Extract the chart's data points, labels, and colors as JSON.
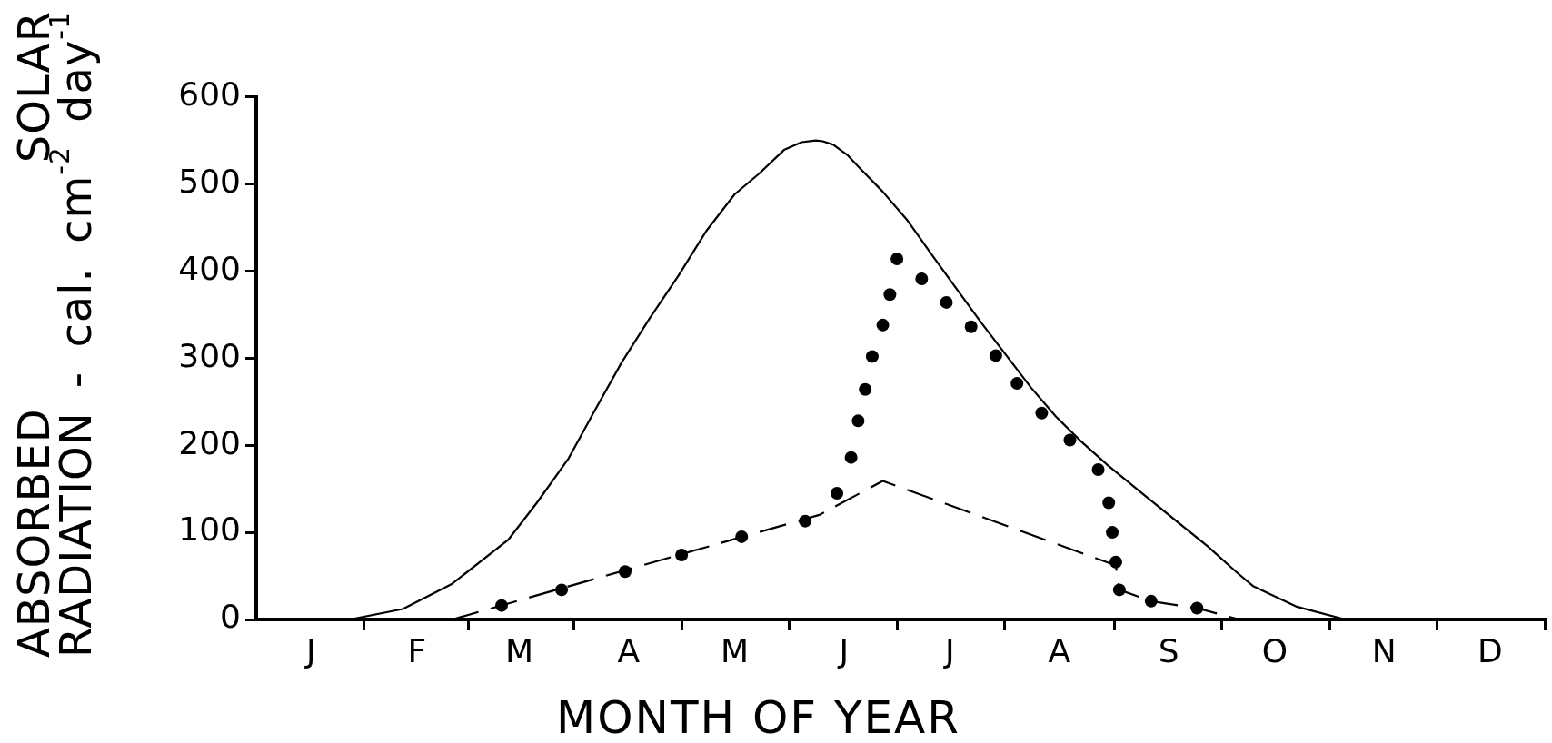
{
  "chart_data": {
    "type": "line",
    "xlabel": "MONTH OF YEAR",
    "ylabel": "ABSORBED SOLAR\nRADIATION - cal. cm$^{-2}$ day$^{-1}$",
    "categories": [
      null,
      null,
      null,
      null,
      null,
      null,
      null,
      null,
      null,
      null,
      null,
      null,
      null,
      null,
      null,
      "J",
      null,
      null,
      null,
      null,
      null,
      null,
      null,
      null,
      null,
      null,
      null,
      null,
      null,
      null,
      null,
      null,
      null,
      null,
      null,
      null,
      null,
      null,
      null,
      null,
      null,
      null,
      null,
      null,
      null,
      "F",
      null,
      null,
      null,
      null,
      null,
      null,
      null,
      null,
      null,
      null,
      null,
      null,
      null,
      null,
      null,
      null,
      null,
      null,
      null,
      null,
      null,
      null,
      null,
      null,
      null,
      null,
      null,
      null,
      "M",
      null,
      null,
      null,
      null,
      null,
      null,
      null,
      null,
      null,
      null,
      null,
      null,
      null,
      null,
      null,
      null,
      null,
      null,
      null,
      null,
      null,
      null,
      null,
      null,
      null,
      null,
      null,
      null,
      null,
      null,
      "A",
      null,
      null,
      null,
      null,
      null,
      null,
      null,
      null,
      null,
      null,
      null,
      null,
      null,
      null,
      null,
      null,
      null,
      null,
      null,
      null,
      null,
      null,
      null,
      null,
      null,
      null,
      null,
      null,
      null,
      "M",
      null,
      null,
      null,
      null,
      null,
      null,
      null,
      null,
      null,
      null,
      null,
      null,
      null,
      null,
      null,
      null,
      null,
      null,
      null,
      null,
      null,
      null,
      null,
      null,
      null,
      null,
      null,
      null,
      null,
      null,
      "J",
      null,
      null,
      null,
      null,
      null,
      null,
      null,
      null,
      null,
      null,
      null,
      null,
      null,
      null,
      null,
      null,
      null,
      null,
      null,
      null,
      null,
      null,
      null,
      null,
      null,
      null,
      null,
      null,
      null,
      "J",
      null,
      null,
      null,
      null,
      null,
      null,
      null,
      null,
      null,
      null,
      null,
      null,
      null,
      null,
      null,
      null,
      null,
      null,
      null,
      null,
      null,
      null,
      null,
      null,
      null,
      null,
      null,
      null,
      null,
      null,
      "A",
      null,
      null,
      null,
      null,
      null,
      null,
      null,
      null,
      null,
      null,
      null,
      null,
      null,
      null,
      null,
      null,
      null,
      null,
      null,
      null,
      null,
      null,
      null,
      null,
      null,
      null,
      null,
      null,
      null,
      null,
      "S",
      null,
      null,
      null,
      null,
      null,
      null,
      null,
      null,
      null,
      null,
      null,
      null,
      null,
      null,
      null,
      null,
      null,
      null,
      null,
      null,
      null,
      null,
      null,
      null,
      null,
      null,
      null,
      null,
      null,
      "O",
      null,
      null,
      null,
      null,
      null,
      null,
      null,
      null,
      null,
      null,
      null,
      null,
      null,
      null,
      null,
      null,
      null,
      null,
      null,
      null,
      null,
      null,
      null,
      null,
      null,
      null,
      null,
      null,
      null,
      null,
      "N",
      null,
      null,
      null,
      null,
      null,
      null,
      null,
      null,
      null,
      null,
      null,
      null,
      null,
      null,
      null,
      null,
      null,
      null,
      null,
      null,
      null,
      null,
      null,
      null,
      null,
      null,
      null,
      null,
      null,
      "D",
      null,
      null,
      null,
      null,
      null,
      null,
      null,
      null,
      null,
      null,
      null,
      null,
      null,
      null,
      null
    ],
    "ylim": [
      0,
      600
    ],
    "yticks": [
      0,
      100,
      200,
      300,
      400,
      500,
      600
    ],
    "grid": false,
    "legend": false,
    "series": [
      {
        "type": "line",
        "color": "#000000",
        "line_style": "solid",
        "marker": "none",
        "values": [
          null,
          null,
          null,
          null,
          null,
          null,
          null,
          null,
          null,
          null,
          null,
          null,
          null,
          null,
          null,
          null,
          null,
          null,
          null,
          null,
          null,
          null,
          null,
          null,
          null,
          null,
          0,
          null,
          null,
          null,
          null,
          null,
          null,
          null,
          null,
          null,
          null,
          null,
          null,
          null,
          null,
          12,
          null,
          null,
          null,
          null,
          null,
          null,
          null,
          null,
          null,
          null,
          null,
          null,
          null,
          41,
          null,
          null,
          null,
          null,
          null,
          null,
          null,
          null,
          null,
          null,
          null,
          null,
          null,
          null,
          null,
          92,
          null,
          null,
          null,
          null,
          null,
          null,
          null,
          134,
          null,
          null,
          null,
          null,
          null,
          null,
          null,
          null,
          185,
          null,
          null,
          null,
          null,
          null,
          null,
          237,
          null,
          null,
          null,
          null,
          null,
          null,
          null,
          295,
          null,
          null,
          null,
          null,
          null,
          null,
          null,
          346,
          null,
          null,
          null,
          null,
          null,
          null,
          null,
          394,
          null,
          null,
          null,
          null,
          null,
          null,
          null,
          446,
          null,
          null,
          null,
          null,
          null,
          null,
          null,
          488,
          null,
          null,
          null,
          null,
          null,
          null,
          512,
          null,
          null,
          null,
          null,
          null,
          null,
          539,
          null,
          null,
          null,
          null,
          548,
          null,
          null,
          null,
          550,
          null,
          549,
          null,
          null,
          545,
          null,
          null,
          null,
          533,
          null,
          null,
          520,
          null,
          null,
          null,
          null,
          null,
          null,
          491,
          null,
          null,
          null,
          null,
          null,
          null,
          458,
          null,
          null,
          null,
          null,
          null,
          null,
          418,
          null,
          null,
          null,
          null,
          null,
          null,
          379,
          null,
          null,
          null,
          null,
          null,
          null,
          340,
          null,
          null,
          null,
          null,
          null,
          null,
          303,
          null,
          null,
          null,
          null,
          null,
          null,
          266,
          null,
          null,
          null,
          null,
          null,
          null,
          233,
          null,
          null,
          null,
          null,
          null,
          null,
          205,
          null,
          null,
          null,
          null,
          null,
          null,
          null,
          176,
          null,
          null,
          null,
          null,
          null,
          null,
          null,
          null,
          null,
          143,
          null,
          null,
          null,
          null,
          null,
          null,
          null,
          null,
          null,
          null,
          null,
          null,
          null,
          null,
          null,
          null,
          null,
          84,
          null,
          null,
          null,
          null,
          null,
          null,
          null,
          55,
          null,
          null,
          null,
          null,
          38,
          null,
          null,
          null,
          null,
          null,
          null,
          null,
          null,
          null,
          null,
          null,
          15,
          null,
          null,
          null,
          null,
          null,
          null,
          null,
          null,
          null,
          null,
          null,
          null,
          null,
          0,
          null,
          null,
          null,
          null,
          null,
          null,
          null,
          null,
          null,
          null,
          null,
          null,
          null,
          null,
          null,
          null,
          null,
          null,
          null,
          null,
          null,
          null,
          null,
          null,
          null,
          null,
          null,
          null,
          null,
          null,
          null,
          null,
          null,
          null,
          null,
          null,
          null,
          null,
          null,
          null,
          null,
          null,
          null,
          null,
          null,
          null,
          null,
          null,
          null,
          null,
          null,
          null,
          null,
          null,
          null,
          null
        ]
      },
      {
        "type": "line",
        "color": "#000000",
        "line_style": "dashed",
        "marker": "none",
        "values": [
          null,
          null,
          null,
          null,
          null,
          null,
          null,
          null,
          null,
          null,
          null,
          null,
          null,
          null,
          null,
          null,
          null,
          null,
          null,
          null,
          null,
          null,
          null,
          null,
          null,
          null,
          null,
          null,
          null,
          null,
          null,
          null,
          null,
          null,
          null,
          null,
          null,
          null,
          null,
          null,
          null,
          null,
          null,
          null,
          null,
          null,
          null,
          null,
          null,
          null,
          null,
          null,
          null,
          null,
          null,
          0,
          null,
          null,
          null,
          null,
          null,
          null,
          null,
          null,
          null,
          null,
          null,
          null,
          null,
          null,
          null,
          null,
          null,
          null,
          null,
          null,
          null,
          null,
          null,
          null,
          null,
          null,
          null,
          null,
          null,
          null,
          null,
          null,
          null,
          null,
          null,
          null,
          null,
          null,
          null,
          null,
          null,
          null,
          null,
          null,
          null,
          null,
          null,
          null,
          null,
          null,
          null,
          null,
          null,
          null,
          null,
          null,
          null,
          null,
          null,
          null,
          null,
          null,
          null,
          null,
          null,
          null,
          null,
          null,
          null,
          null,
          null,
          null,
          null,
          null,
          null,
          null,
          null,
          null,
          null,
          null,
          null,
          null,
          null,
          null,
          null,
          null,
          null,
          null,
          null,
          null,
          null,
          null,
          null,
          null,
          null,
          null,
          null,
          null,
          null,
          null,
          null,
          null,
          null,
          120,
          null,
          null,
          null,
          null,
          null,
          null,
          null,
          null,
          null,
          null,
          null,
          null,
          null,
          null,
          null,
          null,
          null,
          159,
          null,
          null,
          null,
          null,
          null,
          null,
          null,
          null,
          null,
          null,
          null,
          null,
          null,
          null,
          null,
          null,
          null,
          null,
          null,
          null,
          null,
          null,
          null,
          null,
          null,
          null,
          null,
          null,
          null,
          null,
          null,
          null,
          null,
          null,
          null,
          null,
          null,
          null,
          null,
          null,
          null,
          null,
          null,
          null,
          null,
          null,
          null,
          null,
          null,
          null,
          null,
          null,
          null,
          null,
          null,
          null,
          null,
          null,
          null,
          null,
          null,
          null,
          null,
          null,
          null,
          62,
          34,
          null,
          null,
          null,
          null,
          null,
          null,
          null,
          null,
          21,
          null,
          null,
          null,
          null,
          null,
          null,
          null,
          null,
          null,
          null,
          null,
          null,
          13,
          null,
          null,
          null,
          null,
          null,
          null,
          null,
          null,
          null,
          null,
          null,
          0,
          null,
          null,
          null,
          null,
          null,
          null,
          null,
          null,
          null,
          null,
          null,
          null,
          null,
          null,
          null,
          null,
          null,
          null,
          null,
          null,
          null,
          null,
          null,
          null,
          null,
          null,
          null,
          null,
          null,
          null,
          null,
          null,
          null,
          null,
          null,
          null,
          null,
          null,
          null,
          null,
          null,
          null,
          null,
          null,
          null,
          null,
          null,
          null,
          null,
          null,
          null,
          null,
          null,
          null,
          null,
          null,
          null,
          null,
          null,
          null,
          null,
          null,
          null,
          null,
          null,
          null,
          null,
          null,
          null,
          null,
          null,
          null,
          null,
          null,
          null,
          null,
          null,
          null,
          null,
          null,
          null,
          null,
          null,
          null,
          null,
          null
        ]
      },
      {
        "type": "scatter",
        "color": "#000000",
        "marker": "circle",
        "values": [
          null,
          null,
          null,
          null,
          null,
          null,
          null,
          null,
          null,
          null,
          null,
          null,
          null,
          null,
          null,
          null,
          null,
          null,
          null,
          null,
          null,
          null,
          null,
          null,
          null,
          null,
          null,
          null,
          null,
          null,
          null,
          null,
          null,
          null,
          null,
          null,
          null,
          null,
          null,
          null,
          null,
          null,
          null,
          null,
          null,
          null,
          null,
          null,
          null,
          null,
          null,
          null,
          null,
          null,
          null,
          null,
          null,
          null,
          null,
          null,
          null,
          null,
          null,
          null,
          null,
          null,
          null,
          null,
          null,
          16,
          null,
          null,
          null,
          null,
          null,
          null,
          null,
          null,
          null,
          null,
          null,
          null,
          null,
          null,
          null,
          null,
          34,
          null,
          null,
          null,
          null,
          null,
          null,
          null,
          null,
          null,
          null,
          null,
          null,
          null,
          null,
          null,
          null,
          null,
          55,
          null,
          null,
          null,
          null,
          null,
          null,
          null,
          null,
          null,
          null,
          null,
          null,
          null,
          null,
          null,
          74,
          null,
          null,
          null,
          null,
          null,
          null,
          null,
          null,
          null,
          null,
          null,
          null,
          null,
          null,
          null,
          null,
          95,
          null,
          null,
          null,
          null,
          null,
          null,
          null,
          null,
          null,
          null,
          null,
          null,
          null,
          null,
          null,
          null,
          null,
          113,
          null,
          null,
          null,
          null,
          null,
          null,
          null,
          null,
          145,
          null,
          null,
          null,
          186,
          null,
          228,
          null,
          264,
          null,
          302,
          null,
          null,
          338,
          null,
          373,
          null,
          414,
          null,
          null,
          null,
          null,
          null,
          null,
          391,
          null,
          null,
          null,
          null,
          null,
          null,
          364,
          null,
          null,
          null,
          null,
          null,
          null,
          336,
          null,
          null,
          null,
          null,
          null,
          null,
          303,
          null,
          null,
          null,
          null,
          null,
          271,
          null,
          null,
          null,
          null,
          null,
          null,
          237,
          null,
          null,
          null,
          null,
          null,
          null,
          null,
          206,
          null,
          null,
          null,
          null,
          null,
          null,
          null,
          172,
          null,
          null,
          134,
          100,
          66,
          34,
          null,
          null,
          null,
          null,
          null,
          null,
          null,
          null,
          21,
          null,
          null,
          null,
          null,
          null,
          null,
          null,
          null,
          null,
          null,
          null,
          null,
          13,
          null,
          null,
          null,
          null,
          null,
          null,
          null,
          null,
          null,
          null,
          null,
          null,
          null,
          null,
          null,
          null,
          null,
          null,
          null,
          null,
          null,
          null,
          null,
          null,
          null,
          null,
          null,
          null,
          null,
          null,
          null,
          null,
          null,
          null,
          null,
          null,
          null,
          null,
          null,
          null,
          null,
          null,
          null,
          null,
          null,
          null,
          null,
          null,
          null,
          null,
          null,
          null,
          null,
          null,
          null,
          null,
          null,
          null,
          null,
          null,
          null,
          null,
          null,
          null,
          null,
          null,
          null,
          null,
          null,
          null,
          null,
          null,
          null,
          null,
          null,
          null,
          null,
          null,
          null,
          null,
          null,
          null,
          null,
          null,
          null,
          null,
          null,
          null,
          null,
          null,
          null,
          null,
          null,
          null,
          null,
          null,
          null,
          null
        ]
      }
    ]
  }
}
